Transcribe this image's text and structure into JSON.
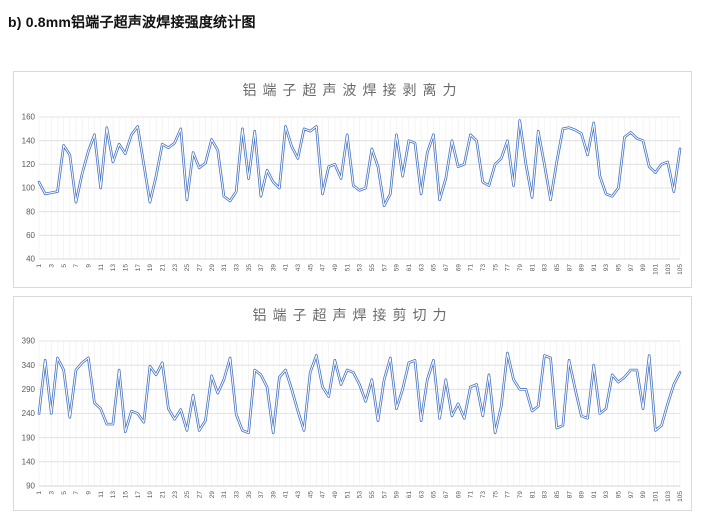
{
  "page": {
    "heading": "b) 0.8mm铝端子超声波焊接强度统计图"
  },
  "colors": {
    "line": "#4472C4",
    "line_core": "#ffffff",
    "grid_major": "#dcdcdc",
    "grid_minor": "#efefef",
    "axis_line": "#c9c9c9",
    "chart_border": "#d9d9d9",
    "title_color": "#6b6b6b",
    "tick_color": "#595959"
  },
  "chart_data": [
    {
      "type": "line",
      "title": "铝端子超声波焊接剥离力",
      "xlabel": "",
      "ylabel": "",
      "legend": "none",
      "grid": true,
      "ylim": [
        40,
        160
      ],
      "y_ticks": [
        160,
        140,
        120,
        100,
        80,
        60,
        40
      ],
      "x_ticks": [
        1,
        3,
        5,
        7,
        9,
        11,
        13,
        15,
        17,
        19,
        21,
        23,
        25,
        27,
        29,
        31,
        33,
        35,
        37,
        39,
        41,
        43,
        45,
        47,
        49,
        51,
        53,
        55,
        57,
        59,
        61,
        63,
        65,
        67,
        69,
        71,
        73,
        75,
        77,
        79,
        81,
        83,
        85,
        87,
        89,
        91,
        93,
        95,
        97,
        99,
        101,
        103,
        105
      ],
      "x": "1..105 (sample index)",
      "values": [
        105,
        95,
        96,
        97,
        136,
        128,
        88,
        112,
        131,
        145,
        100,
        151,
        122,
        137,
        129,
        145,
        152,
        120,
        88,
        110,
        137,
        134,
        138,
        150,
        90,
        130,
        117,
        121,
        141,
        132,
        93,
        89,
        97,
        150,
        108,
        148,
        93,
        115,
        105,
        100,
        152,
        135,
        125,
        150,
        148,
        152,
        95,
        118,
        120,
        108,
        145,
        102,
        98,
        100,
        133,
        118,
        85,
        95,
        145,
        110,
        140,
        138,
        95,
        130,
        145,
        90,
        108,
        140,
        118,
        120,
        145,
        140,
        105,
        102,
        120,
        125,
        140,
        102,
        157,
        120,
        92,
        148,
        120,
        90,
        122,
        150,
        151,
        149,
        146,
        128,
        155,
        110,
        95,
        93,
        100,
        143,
        147,
        142,
        140,
        118,
        113,
        120,
        122,
        97,
        133
      ]
    },
    {
      "type": "line",
      "title": "铝端子超声焊接剪切力",
      "xlabel": "",
      "ylabel": "",
      "legend": "none",
      "grid": true,
      "ylim": [
        90,
        390
      ],
      "y_ticks": [
        390,
        340,
        290,
        240,
        190,
        140,
        90
      ],
      "x_ticks": [
        1,
        3,
        5,
        7,
        9,
        11,
        13,
        15,
        17,
        19,
        21,
        23,
        25,
        27,
        29,
        31,
        33,
        35,
        37,
        39,
        41,
        43,
        45,
        47,
        49,
        51,
        53,
        55,
        57,
        59,
        61,
        63,
        65,
        67,
        69,
        71,
        73,
        75,
        77,
        79,
        81,
        83,
        85,
        87,
        89,
        91,
        93,
        95,
        97,
        99,
        101,
        103,
        105
      ],
      "x": "1..105 (sample index)",
      "values": [
        240,
        350,
        240,
        355,
        330,
        232,
        330,
        345,
        355,
        262,
        250,
        218,
        218,
        330,
        202,
        245,
        240,
        222,
        338,
        320,
        345,
        250,
        228,
        248,
        205,
        278,
        205,
        225,
        318,
        282,
        310,
        355,
        238,
        205,
        200,
        330,
        320,
        295,
        200,
        315,
        330,
        290,
        245,
        205,
        325,
        360,
        295,
        275,
        350,
        300,
        330,
        325,
        300,
        265,
        310,
        225,
        310,
        355,
        250,
        290,
        345,
        350,
        225,
        310,
        350,
        230,
        310,
        235,
        260,
        230,
        295,
        300,
        235,
        320,
        200,
        255,
        365,
        310,
        290,
        290,
        245,
        255,
        360,
        355,
        210,
        215,
        350,
        290,
        235,
        230,
        340,
        240,
        250,
        320,
        305,
        315,
        330,
        330,
        250,
        360,
        205,
        215,
        260,
        300,
        325
      ]
    }
  ]
}
